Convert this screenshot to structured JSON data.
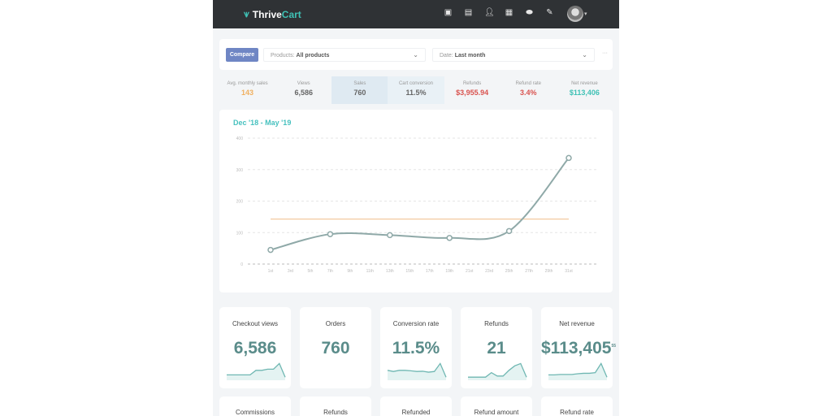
{
  "header": {
    "logo_a": "Thrive",
    "logo_b": "Cart",
    "nav_icons": [
      "dashboard-icon",
      "table-icon",
      "user-icon",
      "calendar-icon",
      "handshake-icon",
      "document-edit-icon"
    ]
  },
  "filters": {
    "compare": "Compare",
    "products_label": "Products:",
    "products_value": "All products",
    "date_label": "Date:",
    "date_value": "Last month",
    "more": "···"
  },
  "stats": [
    {
      "label": "Avg. monthly sales",
      "value": "143",
      "color": "#f0b060"
    },
    {
      "label": "Views",
      "value": "6,586",
      "color": "#666666"
    },
    {
      "label": "Sales",
      "value": "760",
      "color": "#666666"
    },
    {
      "label": "Cart conversion",
      "value": "11.5%",
      "color": "#666666"
    },
    {
      "label": "Refunds",
      "value": "$3,955.94",
      "color": "#d9534f"
    },
    {
      "label": "Refund rate",
      "value": "3.4%",
      "color": "#d9534f"
    },
    {
      "label": "Net revenue",
      "value": "$113,406",
      "color": "#3fc1b5"
    }
  ],
  "chart_data": {
    "type": "line",
    "title": "Dec '18 - May '19",
    "x_ticks": [
      "1st",
      "3rd",
      "5th",
      "7th",
      "9th",
      "11th",
      "13th",
      "15th",
      "17th",
      "19th",
      "21st",
      "23rd",
      "25th",
      "27th",
      "29th",
      "31st"
    ],
    "y_ticks": [
      0,
      100,
      200,
      300,
      400
    ],
    "ylim": [
      0,
      400
    ],
    "series": [
      {
        "x": [
          1,
          7,
          13,
          19,
          25,
          31
        ],
        "y": [
          45,
          95,
          92,
          83,
          105,
          337
        ],
        "color": "#8fa9a8"
      }
    ],
    "average_line": {
      "y": 143,
      "color": "#f3c9a0"
    },
    "grid": true
  },
  "cards": [
    {
      "title": "Checkout views",
      "value": "6,586",
      "spark": [
        2,
        2,
        2,
        2,
        2,
        4,
        4,
        4.5,
        4.5,
        7,
        1
      ]
    },
    {
      "title": "Orders",
      "value": "760",
      "spark": []
    },
    {
      "title": "Conversion rate",
      "value": "11.5%",
      "spark": [
        4,
        3.5,
        4,
        4,
        3.8,
        3.5,
        3.6,
        3.2,
        3.5,
        7,
        1
      ]
    },
    {
      "title": "Refunds",
      "value": "21",
      "spark": [
        1,
        1,
        1,
        1,
        3,
        1.5,
        1.5,
        4,
        6,
        7,
        1
      ]
    },
    {
      "title": "Net revenue",
      "value": "$113,405",
      "cents": "55",
      "spark": [
        2,
        2,
        2.2,
        2.2,
        2.2,
        2.5,
        2.7,
        2.7,
        3,
        7,
        1
      ]
    }
  ],
  "cards2": [
    "Commissions",
    "Refunds",
    "Refunded",
    "Refund amount",
    "Refund rate"
  ]
}
